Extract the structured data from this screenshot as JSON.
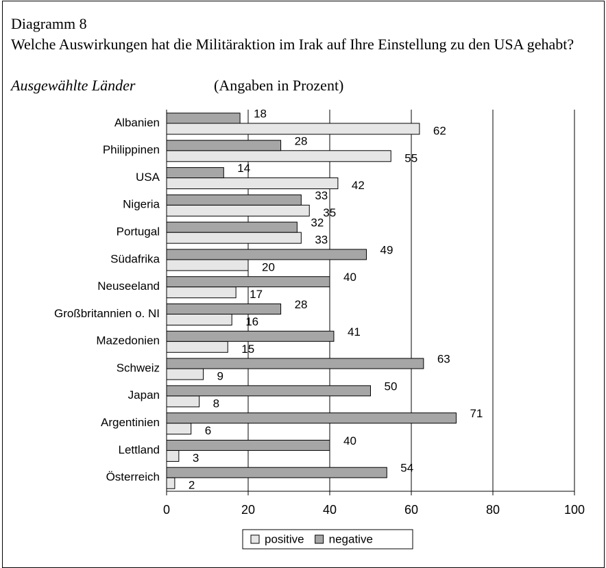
{
  "header": {
    "label": "Diagramm 8",
    "question": "Welche Auswirkungen hat die Militäraktion im Irak auf Ihre Einstellung zu den USA gehabt?",
    "subset": "Ausgewählte Länder",
    "unit": "(Angaben in Prozent)"
  },
  "chart_data": {
    "type": "hbar",
    "categories": [
      "Albanien",
      "Philippinen",
      "USA",
      "Nigeria",
      "Portugal",
      "Südafrika",
      "Neuseeland",
      "Großbritannien o. NI",
      "Mazedonien",
      "Schweiz",
      "Japan",
      "Argentinien",
      "Lettland",
      "Österreich"
    ],
    "series": [
      {
        "name": "positive",
        "color": "#e6e6e6",
        "values": [
          62,
          55,
          42,
          35,
          33,
          20,
          17,
          16,
          15,
          9,
          8,
          6,
          3,
          2
        ]
      },
      {
        "name": "negative",
        "color": "#a6a6a6",
        "values": [
          18,
          28,
          14,
          33,
          32,
          49,
          40,
          28,
          41,
          63,
          50,
          71,
          40,
          54
        ]
      }
    ],
    "xlim": [
      0,
      100
    ],
    "xticks": [
      0,
      20,
      40,
      60,
      80,
      100
    ],
    "grid": true,
    "legend": "bottom"
  }
}
